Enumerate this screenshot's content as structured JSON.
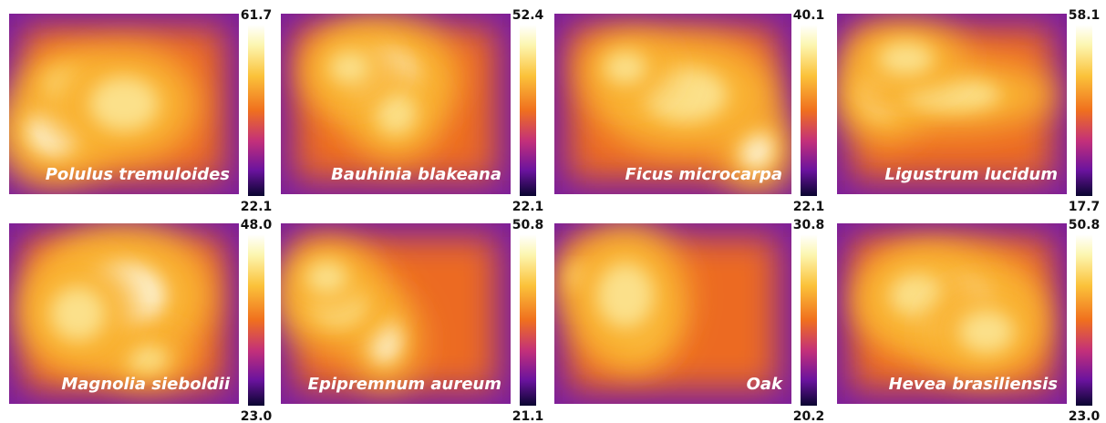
{
  "panels": [
    {
      "label": "Polulus tremuloides",
      "max": "61.7",
      "min": "22.1"
    },
    {
      "label": "Bauhinia blakeana",
      "max": "52.4",
      "min": "22.1"
    },
    {
      "label": "Ficus microcarpa",
      "max": "40.1",
      "min": "22.1"
    },
    {
      "label": "Ligustrum lucidum",
      "max": "58.1",
      "min": "17.7"
    },
    {
      "label": "Magnolia sieboldii",
      "max": "48.0",
      "min": "23.0"
    },
    {
      "label": "Epipremnum aureum",
      "max": "50.8",
      "min": "21.1"
    },
    {
      "label": "Oak",
      "max": "30.8",
      "min": "20.2"
    },
    {
      "label": "Hevea brasiliensis",
      "max": "50.8",
      "min": "23.0"
    }
  ]
}
